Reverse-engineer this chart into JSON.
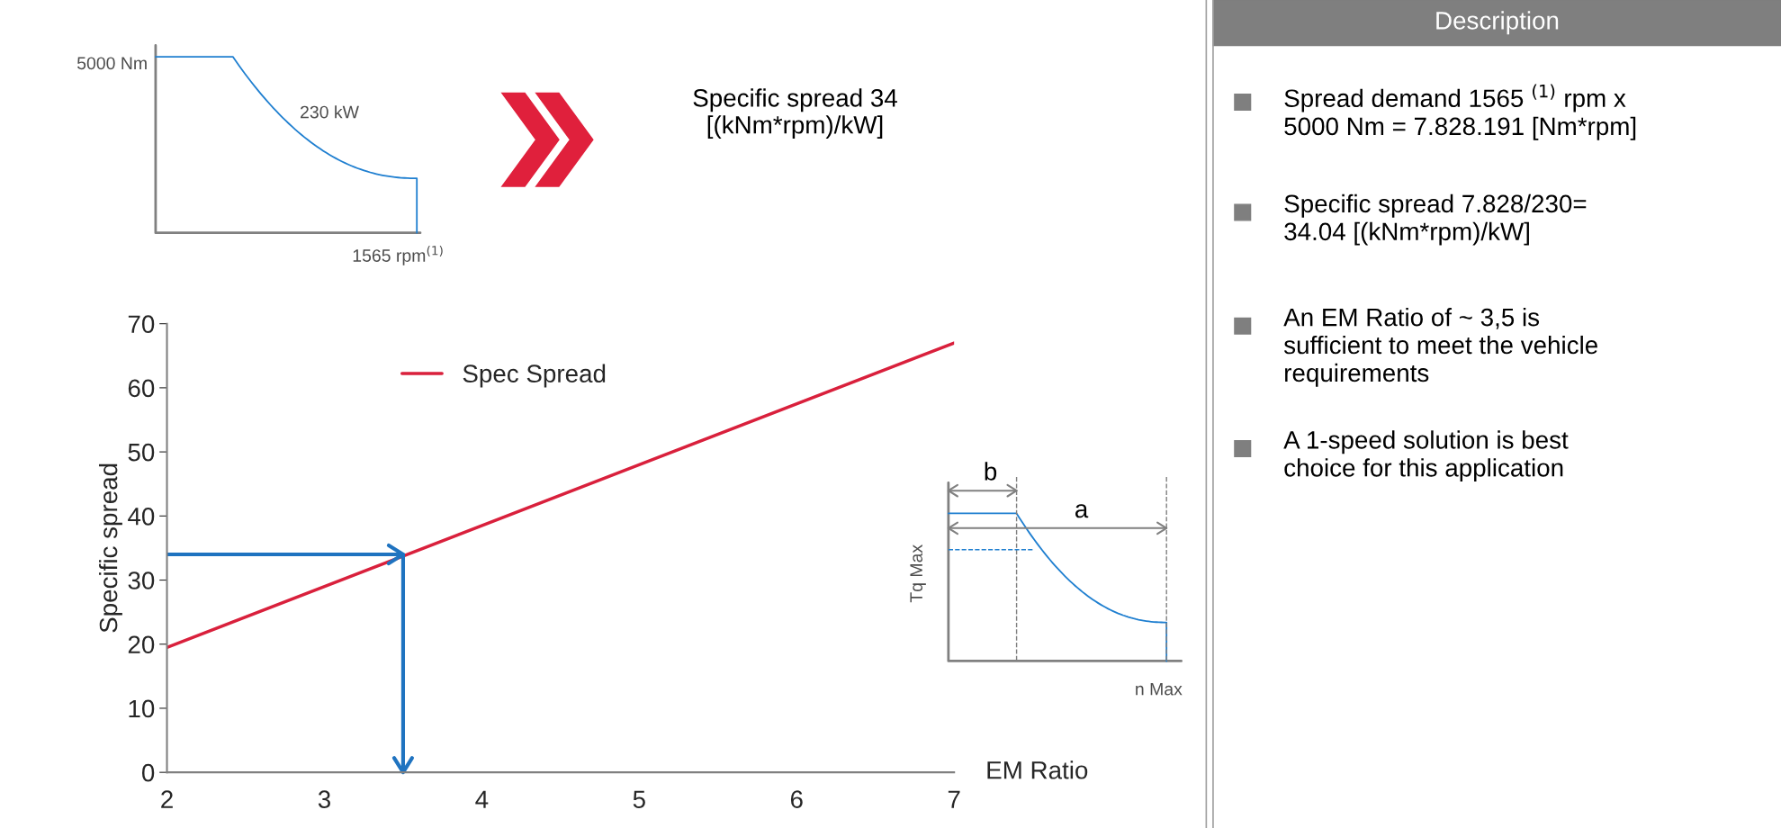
{
  "chart_data": {
    "type": "line",
    "xlabel": "EM Ratio",
    "ylabel": "Specific spread",
    "xlim": [
      2,
      7
    ],
    "ylim": [
      0,
      70
    ],
    "xticks": [
      2,
      3,
      4,
      5,
      6,
      7
    ],
    "yticks": [
      0,
      10,
      20,
      30,
      40,
      50,
      60,
      70
    ],
    "grid": false,
    "legend": "top left",
    "line_style": "solid",
    "marker": "none",
    "series": [
      {
        "name": "Spec Spread",
        "color": "#d9203c",
        "x": [
          2,
          7
        ],
        "values": [
          19.5,
          67
        ]
      },
      {
        "type": "line",
        "color": "#1f73c0",
        "x": [
          2,
          3.5,
          3.5
        ],
        "values": [
          34,
          34,
          0
        ]
      }
    ],
    "annotations": [
      "5000 Nm",
      "230 kW",
      "1565 rpm$^{(1)}$",
      "Specific spread 34\n[(kNm*rpm)/kW]",
      "b",
      "a",
      "Tq Max",
      "n Max",
      "Description",
      "Spread demand 1565 $^{(1)}$ rpm x\n5000 Nm = 7.828.191 [Nm*rpm]",
      "Specific spread 7.828/230=\n34.04 [(kNm*rpm)/kW]",
      "An EM Ratio of ~ 3,5 is\nsufficient to meet the vehicle\nrequirements",
      "A 1-speed solution is best\nchoice for this application"
    ]
  }
}
